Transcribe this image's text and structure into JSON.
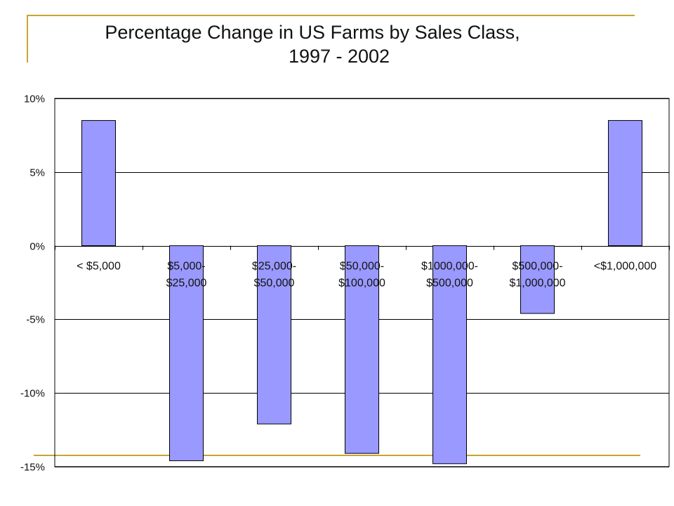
{
  "title_lines": [
    "Percentage Change in US Farms by Sales Class,",
    "1997 - 2002"
  ],
  "colors": {
    "accent_rule": "#C8A531",
    "bar_fill": "#9999FF",
    "bar_stroke": "#000000",
    "grid": "#000000",
    "text": "#111111"
  },
  "chart_data": {
    "type": "bar",
    "title": "Percentage Change in US Farms by Sales Class, 1997 - 2002",
    "categories": [
      [
        "< $5,000"
      ],
      [
        "$5,000-",
        "$25,000"
      ],
      [
        "$25,000-",
        "$50,000"
      ],
      [
        "$50,000-",
        "$100,000"
      ],
      [
        "$1000,000-",
        "$500,000"
      ],
      [
        "$500,000-",
        "$1,000,000"
      ],
      [
        "<$1,000,000"
      ]
    ],
    "values": [
      8.5,
      -14.6,
      -12.1,
      -14.1,
      -14.8,
      -4.6,
      8.5
    ],
    "ylim": [
      -15,
      10
    ],
    "yticks": [
      10,
      5,
      0,
      -5,
      -10,
      -15
    ],
    "ytick_labels": [
      "10%",
      "5%",
      "0%",
      "-5%",
      "-10%",
      "-15%"
    ],
    "xlabel": "",
    "ylabel": "",
    "grid": true,
    "legend": "none"
  }
}
